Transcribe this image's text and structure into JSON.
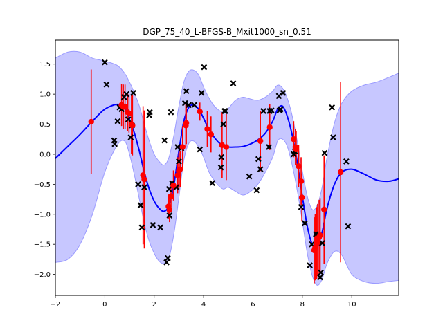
{
  "chart_data": {
    "type": "scatter",
    "title": "DGP_75_40_L-BFGS-B_Mxit1000_sn_0.51",
    "xlabel": "",
    "ylabel": "",
    "xlim": [
      -2,
      11.9
    ],
    "ylim": [
      -2.35,
      1.9
    ],
    "xticks": [
      -2,
      0,
      2,
      4,
      6,
      8,
      10
    ],
    "yticks": [
      -2.0,
      -1.5,
      -1.0,
      -0.5,
      0.0,
      0.5,
      1.0,
      1.5
    ],
    "xtick_labels": [
      "−2",
      "0",
      "2",
      "4",
      "6",
      "8",
      "10"
    ],
    "ytick_labels": [
      "−2.0",
      "−1.5",
      "−1.0",
      "−0.5",
      "0.0",
      "0.5",
      "1.0",
      "1.5"
    ],
    "grid": false,
    "colors": {
      "mean_line": "#0000ff",
      "band_fill": "#0000ff",
      "band_opacity": 0.22,
      "band_edge": "#9a9aff",
      "training_points": "#000000",
      "predictions": "#ff0000"
    },
    "series": [
      {
        "type": "line",
        "x": [
          -2.0,
          -1.5,
          -1.0,
          -0.5,
          0.0,
          0.5,
          0.8,
          1.0,
          1.2,
          1.4,
          1.6,
          1.8,
          2.0,
          2.2,
          2.4,
          2.6,
          2.8,
          3.0,
          3.2,
          3.4,
          3.6,
          3.8,
          4.0,
          4.2,
          4.4,
          4.6,
          4.8,
          5.0,
          5.3,
          5.6,
          5.9,
          6.2,
          6.5,
          6.8,
          7.0,
          7.2,
          7.4,
          7.6,
          7.8,
          8.0,
          8.2,
          8.4,
          8.6,
          8.8,
          9.0,
          9.3,
          9.6,
          10.0,
          10.5,
          11.0,
          11.5,
          11.9
        ],
        "y": [
          -0.07,
          0.13,
          0.33,
          0.55,
          0.75,
          0.83,
          0.78,
          0.58,
          0.35,
          0.05,
          -0.3,
          -0.58,
          -0.78,
          -0.9,
          -0.95,
          -0.85,
          -0.5,
          0.05,
          0.55,
          0.78,
          0.82,
          0.75,
          0.6,
          0.42,
          0.3,
          0.2,
          0.14,
          0.12,
          0.12,
          0.13,
          0.17,
          0.24,
          0.35,
          0.55,
          0.75,
          0.8,
          0.62,
          0.3,
          -0.15,
          -0.7,
          -1.2,
          -1.5,
          -1.55,
          -1.3,
          -0.9,
          -0.5,
          -0.3,
          -0.25,
          -0.33,
          -0.43,
          -0.45,
          -0.41
        ]
      },
      {
        "type": "band",
        "x": [
          -2.0,
          -1.5,
          -1.0,
          -0.5,
          0.0,
          0.5,
          0.8,
          1.0,
          1.2,
          1.4,
          1.6,
          1.8,
          2.0,
          2.2,
          2.4,
          2.6,
          2.8,
          3.0,
          3.2,
          3.4,
          3.6,
          3.8,
          4.0,
          4.2,
          4.4,
          4.6,
          4.8,
          5.0,
          5.3,
          5.6,
          5.9,
          6.2,
          6.5,
          6.8,
          7.0,
          7.2,
          7.4,
          7.6,
          7.8,
          8.0,
          8.2,
          8.4,
          8.6,
          8.8,
          9.0,
          9.3,
          9.6,
          10.0,
          10.5,
          11.0,
          11.5,
          11.9
        ],
        "upper": [
          1.6,
          1.7,
          1.7,
          1.6,
          1.55,
          1.48,
          1.35,
          1.2,
          1.02,
          0.8,
          0.5,
          0.22,
          0.0,
          -0.12,
          -0.18,
          -0.05,
          0.32,
          0.8,
          1.2,
          1.38,
          1.4,
          1.32,
          1.12,
          0.95,
          0.82,
          0.74,
          0.7,
          0.76,
          0.9,
          0.95,
          0.92,
          0.9,
          0.95,
          1.05,
          1.15,
          1.1,
          0.92,
          0.62,
          0.2,
          -0.28,
          -0.7,
          -0.92,
          -0.85,
          -0.55,
          -0.05,
          0.52,
          0.85,
          1.05,
          1.15,
          1.2,
          1.28,
          1.35
        ],
        "lower": [
          -1.8,
          -1.75,
          -1.5,
          -1.0,
          -0.3,
          0.15,
          0.22,
          0.0,
          -0.35,
          -0.75,
          -1.15,
          -1.45,
          -1.65,
          -1.78,
          -1.82,
          -1.72,
          -1.32,
          -0.72,
          -0.1,
          0.18,
          0.22,
          0.12,
          -0.05,
          -0.28,
          -0.42,
          -0.52,
          -0.58,
          -0.55,
          -0.62,
          -0.68,
          -0.62,
          -0.5,
          -0.3,
          -0.05,
          0.22,
          0.25,
          0.12,
          -0.2,
          -0.62,
          -1.12,
          -1.65,
          -2.02,
          -2.18,
          -2.08,
          -1.82,
          -1.62,
          -1.68,
          -2.0,
          -2.12,
          -2.15,
          -2.12,
          -2.1
        ]
      },
      {
        "type": "scatter",
        "marker": "x",
        "x": [
          0.0,
          0.07,
          0.38,
          0.4,
          0.52,
          0.6,
          0.68,
          0.78,
          0.88,
          0.95,
          1.05,
          1.1,
          1.15,
          1.35,
          1.45,
          1.5,
          1.6,
          1.8,
          1.82,
          1.95,
          2.25,
          2.42,
          2.5,
          2.55,
          2.6,
          2.62,
          2.68,
          2.72,
          2.9,
          2.95,
          3.0,
          3.1,
          3.25,
          3.3,
          3.4,
          3.62,
          3.85,
          3.92,
          4.02,
          4.35,
          4.7,
          4.72,
          4.8,
          4.85,
          4.88,
          5.2,
          5.85,
          6.15,
          6.22,
          6.3,
          6.42,
          6.65,
          6.68,
          6.75,
          7.05,
          7.08,
          7.12,
          7.22,
          7.65,
          7.7,
          7.95,
          8.1,
          8.3,
          8.38,
          8.55,
          8.72,
          8.75,
          8.8,
          8.9,
          9.2,
          9.25,
          9.78,
          9.85
        ],
        "y": [
          1.53,
          1.16,
          0.23,
          0.17,
          0.55,
          0.78,
          0.75,
          0.95,
          1.0,
          0.58,
          0.28,
          0.48,
          1.02,
          -0.5,
          -0.85,
          -1.22,
          -0.55,
          0.65,
          0.7,
          -1.18,
          -1.22,
          0.23,
          -1.8,
          -1.73,
          -0.58,
          -1.02,
          0.7,
          -0.48,
          -0.55,
          0.12,
          -0.12,
          0.1,
          0.85,
          1.05,
          0.82,
          0.82,
          0.08,
          1.02,
          1.45,
          -0.48,
          -0.22,
          -0.05,
          0.5,
          0.72,
          0.72,
          1.18,
          -0.37,
          -0.6,
          -0.08,
          -0.25,
          0.72,
          0.12,
          0.72,
          0.73,
          0.97,
          0.73,
          0.75,
          1.02,
          0.0,
          0.05,
          -0.88,
          -1.15,
          -1.85,
          -1.5,
          -1.33,
          -2.05,
          -1.97,
          -1.48,
          0.02,
          0.78,
          0.28,
          -0.12,
          -1.2
        ]
      },
      {
        "type": "errorbar",
        "marker": "o",
        "x": [
          -0.55,
          0.68,
          0.75,
          0.82,
          0.92,
          0.98,
          1.08,
          1.12,
          1.55,
          1.6,
          2.58,
          2.62,
          2.68,
          2.78,
          2.95,
          3.0,
          3.05,
          3.15,
          3.28,
          3.3,
          3.85,
          4.15,
          4.3,
          4.75,
          4.92,
          6.3,
          6.68,
          7.65,
          7.72,
          7.75,
          7.85,
          7.95,
          7.98,
          8.48,
          8.52,
          8.58,
          8.62,
          8.68,
          8.72,
          8.88,
          9.55
        ],
        "y": [
          0.54,
          0.82,
          0.79,
          0.79,
          0.7,
          0.68,
          0.5,
          0.48,
          -0.35,
          -0.42,
          -0.87,
          -0.93,
          -0.7,
          -0.52,
          -0.35,
          -0.28,
          -0.25,
          0.12,
          0.48,
          0.52,
          0.71,
          0.42,
          0.33,
          0.15,
          0.12,
          0.22,
          0.45,
          0.25,
          0.12,
          0.08,
          -0.2,
          -0.45,
          -0.72,
          -1.6,
          -1.55,
          -1.48,
          -1.43,
          -1.38,
          -1.35,
          -0.92,
          -0.3
        ],
        "err": [
          0.87,
          0.35,
          0.37,
          0.37,
          0.32,
          0.32,
          0.5,
          0.5,
          1.15,
          1.15,
          0.2,
          0.2,
          0.25,
          0.25,
          0.3,
          0.3,
          0.3,
          0.35,
          0.35,
          0.35,
          0.15,
          0.3,
          0.3,
          0.55,
          0.55,
          0.5,
          0.38,
          0.3,
          0.3,
          0.3,
          0.35,
          0.4,
          0.4,
          0.55,
          0.55,
          0.6,
          0.6,
          0.62,
          0.62,
          0.9,
          1.5
        ]
      }
    ]
  }
}
